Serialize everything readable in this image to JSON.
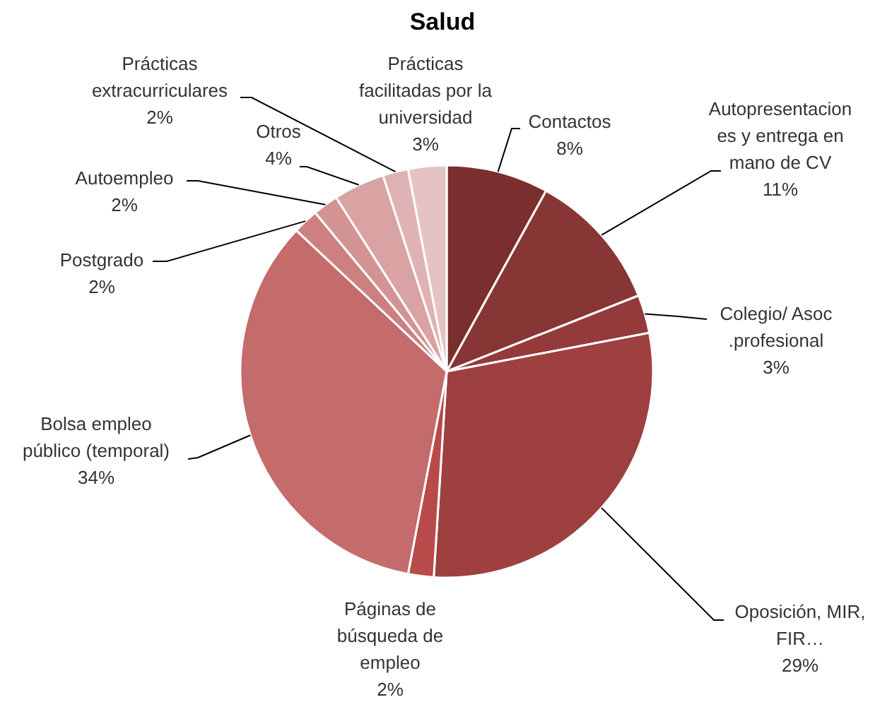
{
  "chart_data": {
    "type": "pie",
    "title": "Salud",
    "categories": [
      "Contactos",
      "Autopresentaciones y entrega en mano de CV",
      "Colegio/ Asoc .profesional",
      "Oposición, MIR, FIR…",
      "Páginas de búsqueda de empleo",
      "Bolsa empleo público (temporal)",
      "Postgrado",
      "Autoempleo",
      "Otros",
      "Prácticas extracurriculares",
      "Prácticas facilitadas por la universidad"
    ],
    "values": [
      8,
      11,
      3,
      29,
      2,
      34,
      2,
      2,
      4,
      2,
      3
    ],
    "colors": [
      "#7b2e2e",
      "#883535",
      "#943a3a",
      "#9e4040",
      "#b84a4a",
      "#c46b6b",
      "#cc8080",
      "#d39393",
      "#d9a3a3",
      "#dfb3b3",
      "#e6c3c3"
    ],
    "value_labels": [
      "8%",
      "11%",
      "3%",
      "29%",
      "2%",
      "34%",
      "2%",
      "2%",
      "4%",
      "2%",
      "3%"
    ]
  }
}
